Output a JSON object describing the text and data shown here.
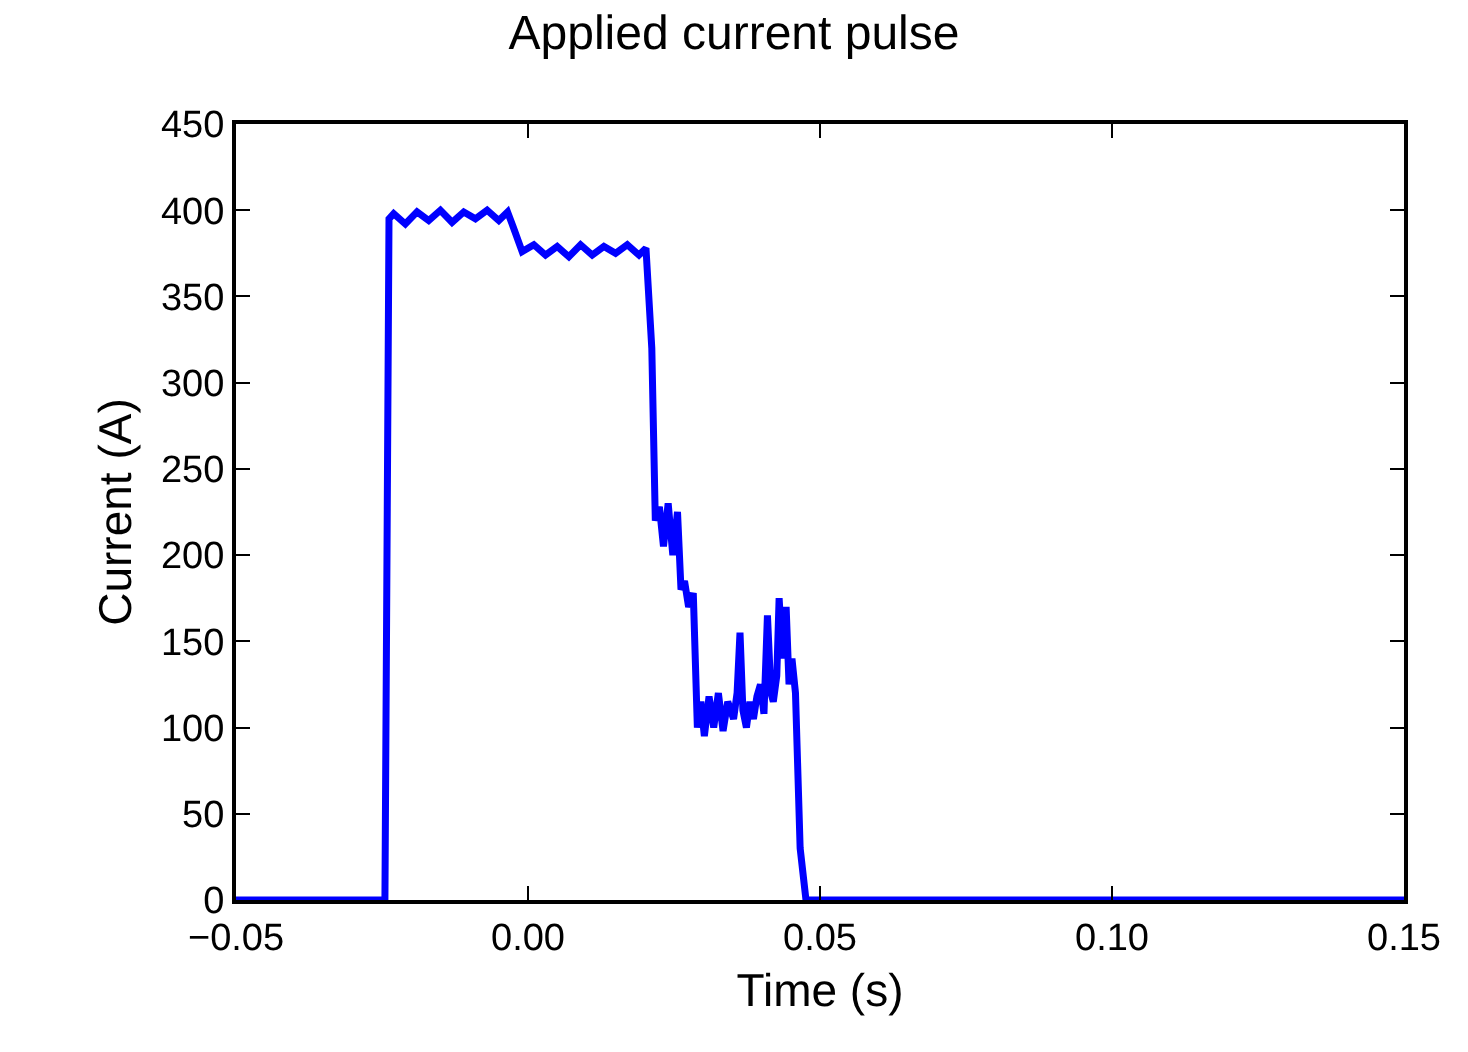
{
  "chart_data": {
    "type": "line",
    "title": "Applied current pulse",
    "xlabel": "Time (s)",
    "ylabel": "Current (A)",
    "x": [
      -0.05,
      -0.0245,
      -0.0238,
      -0.023,
      -0.021,
      -0.019,
      -0.017,
      -0.015,
      -0.013,
      -0.011,
      -0.009,
      -0.007,
      -0.005,
      -0.0035,
      -0.0025,
      -0.001,
      0.001,
      0.003,
      0.005,
      0.007,
      0.009,
      0.011,
      0.013,
      0.015,
      0.017,
      0.019,
      0.0202,
      0.0212,
      0.0218,
      0.0225,
      0.0232,
      0.024,
      0.0248,
      0.0256,
      0.0262,
      0.0268,
      0.0275,
      0.0283,
      0.029,
      0.0296,
      0.0302,
      0.031,
      0.0318,
      0.0326,
      0.0334,
      0.0342,
      0.0352,
      0.0358,
      0.0363,
      0.0368,
      0.0374,
      0.038,
      0.0386,
      0.0392,
      0.0398,
      0.0404,
      0.041,
      0.0416,
      0.042,
      0.0426,
      0.043,
      0.0436,
      0.0442,
      0.0447,
      0.0452,
      0.0458,
      0.0466,
      0.0476,
      0.15
    ],
    "series": [
      {
        "color": "#0000ff",
        "values": [
          0,
          0,
          395,
          398,
          392,
          399,
          394,
          400,
          393,
          399,
          395,
          400,
          394,
          399,
          390,
          376,
          380,
          374,
          379,
          373,
          380,
          374,
          379,
          375,
          380,
          374,
          378,
          320,
          220,
          228,
          205,
          230,
          200,
          225,
          180,
          185,
          170,
          178,
          100,
          115,
          95,
          118,
          100,
          120,
          98,
          115,
          105,
          120,
          155,
          110,
          100,
          115,
          105,
          118,
          125,
          108,
          165,
          120,
          115,
          130,
          175,
          140,
          170,
          125,
          140,
          120,
          30,
          0,
          0
        ]
      }
    ],
    "xlim": [
      -0.05,
      0.15
    ],
    "ylim": [
      0,
      450
    ],
    "xticks": [
      {
        "value": -0.05,
        "label": "−0.05"
      },
      {
        "value": 0,
        "label": "0.00"
      },
      {
        "value": 0.05,
        "label": "0.05"
      },
      {
        "value": 0.1,
        "label": "0.10"
      },
      {
        "value": 0.15,
        "label": "0.15"
      }
    ],
    "yticks": [
      0,
      50,
      100,
      150,
      200,
      250,
      300,
      350,
      400,
      450
    ],
    "grid": false,
    "marker": "none",
    "line_style": "solid"
  }
}
